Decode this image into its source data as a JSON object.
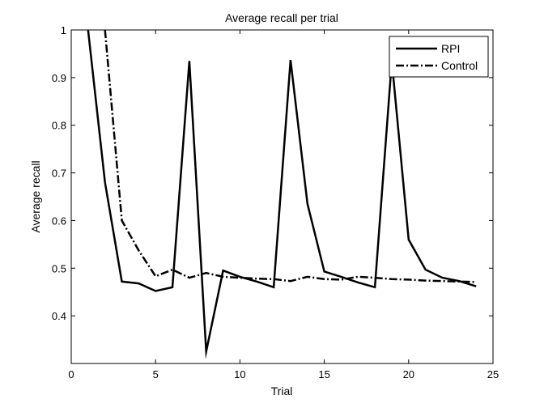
{
  "chart_data": {
    "type": "line",
    "title": "Average recall per trial",
    "xlabel": "Trial",
    "ylabel": "Average recall",
    "xlim": [
      0,
      25
    ],
    "ylim": [
      0.3,
      1.0
    ],
    "x_ticks": [
      0,
      5,
      10,
      15,
      20,
      25
    ],
    "x_tick_labels": [
      "0",
      "5",
      "10",
      "15",
      "20",
      "25"
    ],
    "y_ticks": [
      0.4,
      0.5,
      0.6,
      0.7,
      0.8,
      0.9,
      1.0
    ],
    "y_tick_labels": [
      "0.4",
      "0.5",
      "0.6",
      "0.7",
      "0.8",
      "0.9",
      "1"
    ],
    "grid": false,
    "legend_position": "top-right",
    "series": [
      {
        "name": "RPI",
        "style": "solid",
        "color": "#000000",
        "x": [
          1,
          2,
          3,
          4,
          5,
          6,
          7,
          8,
          9,
          10,
          11,
          12,
          13,
          14,
          15,
          16,
          17,
          18,
          19,
          20,
          21,
          22,
          23,
          24
        ],
        "y": [
          1.0,
          0.68,
          0.472,
          0.468,
          0.452,
          0.46,
          0.935,
          0.325,
          0.495,
          0.482,
          0.472,
          0.46,
          0.937,
          0.635,
          0.493,
          0.482,
          0.47,
          0.46,
          0.935,
          0.56,
          0.497,
          0.48,
          0.473,
          0.462
        ]
      },
      {
        "name": "Control",
        "style": "dashdot",
        "color": "#000000",
        "x": [
          2,
          3,
          4,
          5,
          6,
          7,
          8,
          9,
          10,
          11,
          12,
          13,
          14,
          15,
          16,
          17,
          18,
          19,
          20,
          21,
          22,
          23,
          24
        ],
        "y": [
          1.0,
          0.6,
          0.537,
          0.483,
          0.497,
          0.48,
          0.49,
          0.482,
          0.48,
          0.478,
          0.477,
          0.473,
          0.482,
          0.477,
          0.476,
          0.482,
          0.48,
          0.477,
          0.476,
          0.474,
          0.473,
          0.472,
          0.471
        ]
      }
    ]
  }
}
